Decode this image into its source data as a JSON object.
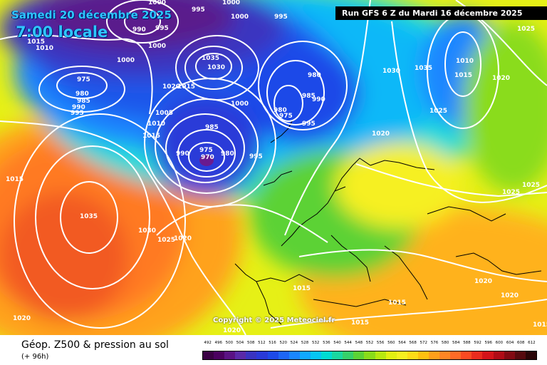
{
  "header": {
    "valid_date": "Samedi 20 décembre 2025",
    "valid_time": "7:00 locale",
    "run_info": "Run GFS 6 Z du Mardi 16 décembre 2025"
  },
  "copyright": "Copyright © 2025 Meteociel.fr",
  "footer": {
    "title": "Géop. Z500 & pression au sol",
    "subtitle": "(+ 96h)"
  },
  "legend": {
    "values": [
      "492",
      "496",
      "500",
      "504",
      "508",
      "512",
      "516",
      "520",
      "524",
      "528",
      "532",
      "536",
      "540",
      "544",
      "548",
      "552",
      "556",
      "560",
      "564",
      "568",
      "572",
      "576",
      "580",
      "584",
      "588",
      "592",
      "596",
      "600",
      "604",
      "608",
      "612"
    ],
    "colors": [
      "#3a0044",
      "#4b0060",
      "#5a1284",
      "#5a2aa8",
      "#3a34c0",
      "#2a3ad8",
      "#1e4ae8",
      "#1e66f6",
      "#1a86ff",
      "#10a8ff",
      "#06c6f4",
      "#00dcd2",
      "#1ad8a0",
      "#36d06a",
      "#5cd236",
      "#8adc1a",
      "#b8e810",
      "#e2f012",
      "#f6f020",
      "#fedc18",
      "#ffc010",
      "#ffa01a",
      "#ff8624",
      "#ff6a26",
      "#fa4a22",
      "#ea2c1e",
      "#d4141a",
      "#b00c16",
      "#820a12",
      "#560a0e",
      "#2a0608"
    ]
  },
  "map": {
    "pressure_labels": [
      "995",
      "1000",
      "995",
      "1000",
      "1000",
      "990",
      "995",
      "1000",
      "1015",
      "1010",
      "1000",
      "1035",
      "1030",
      "975",
      "980",
      "985",
      "990",
      "995",
      "1020",
      "1015",
      "1005",
      "1010",
      "1015",
      "985",
      "975",
      "970",
      "980",
      "990",
      "995",
      "1000",
      "980",
      "985",
      "990",
      "980",
      "975",
      "995",
      "1030",
      "1035",
      "1010",
      "1015",
      "1020",
      "1025",
      "1020",
      "1025",
      "1025",
      "1025",
      "1015",
      "1030",
      "1025",
      "1020",
      "1035",
      "1020",
      "1015",
      "1015",
      "1015",
      "1020",
      "1020",
      "1020",
      "1015"
    ],
    "colors": {
      "low_deep": "#3a0050",
      "low_mid": "#2030d0",
      "mid": "#10b0e8",
      "ridge": "#f2ee22",
      "high": "#ff8a20",
      "contour": "#ffffff"
    }
  }
}
